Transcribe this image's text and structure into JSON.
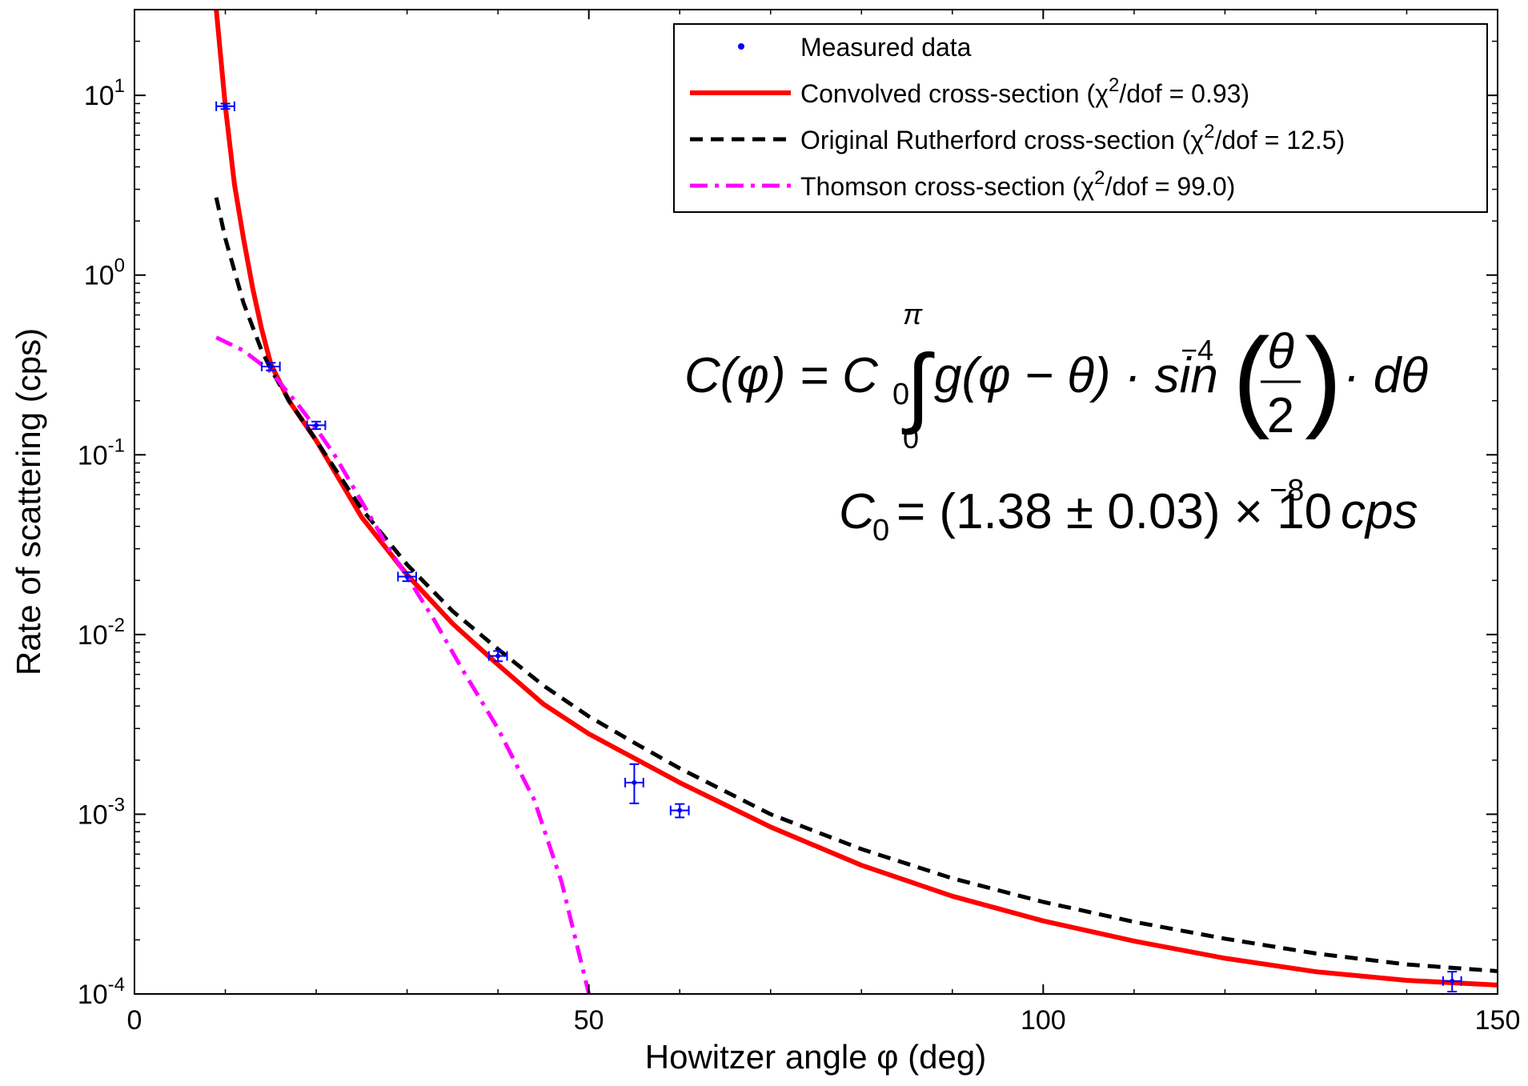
{
  "chart_data": {
    "type": "scatter",
    "title": "",
    "xlabel": "Howitzer angle φ (deg)",
    "ylabel": "Rate of scattering (cps)",
    "xlim": [
      0,
      150
    ],
    "ylim": [
      0.0001,
      30
    ],
    "y_scale": "log",
    "grid": false,
    "legend_position": "top-right",
    "x_ticks": [
      "0",
      "50",
      "100",
      "150"
    ],
    "y_ticks": [
      {
        "base": "10",
        "exp": "1"
      },
      {
        "base": "10",
        "exp": "0"
      },
      {
        "base": "10",
        "exp": "-1"
      },
      {
        "base": "10",
        "exp": "-2"
      },
      {
        "base": "10",
        "exp": "-3"
      },
      {
        "base": "10",
        "exp": "-4"
      }
    ],
    "legend": [
      {
        "prefix": "Measured data",
        "sup": "",
        "suffix": "",
        "color": "#0000ff",
        "style": "point"
      },
      {
        "prefix": "Convolved cross-section (χ",
        "sup": "2",
        "suffix": "/dof = 0.93)",
        "color": "#ff0000",
        "style": "solid"
      },
      {
        "prefix": "Original Rutherford cross-section (χ",
        "sup": "2",
        "suffix": "/dof = 12.5)",
        "color": "#000000",
        "style": "dashed"
      },
      {
        "prefix": "Thomson cross-section (χ",
        "sup": "2",
        "suffix": "/dof = 99.0)",
        "color": "#ff00ff",
        "style": "dashdot"
      }
    ],
    "series": [
      {
        "name": "Measured data",
        "kind": "errorbar",
        "color": "#0000ff",
        "points": [
          {
            "x": 10,
            "y": 8.7,
            "xerr": 1.0,
            "ylo": 8.4,
            "yhi": 9.0
          },
          {
            "x": 15,
            "y": 0.31,
            "xerr": 1.0,
            "ylo": 0.295,
            "yhi": 0.325
          },
          {
            "x": 20,
            "y": 0.146,
            "xerr": 1.0,
            "ylo": 0.139,
            "yhi": 0.153
          },
          {
            "x": 30,
            "y": 0.021,
            "xerr": 1.0,
            "ylo": 0.0198,
            "yhi": 0.0222
          },
          {
            "x": 40,
            "y": 0.0076,
            "xerr": 1.0,
            "ylo": 0.0071,
            "yhi": 0.0081
          },
          {
            "x": 55,
            "y": 0.0015,
            "xerr": 1.0,
            "ylo": 0.00115,
            "yhi": 0.0019
          },
          {
            "x": 60,
            "y": 0.00105,
            "xerr": 1.0,
            "ylo": 0.00096,
            "yhi": 0.00114
          },
          {
            "x": 145,
            "y": 0.000118,
            "xerr": 1.0,
            "ylo": 0.000103,
            "yhi": 0.000133
          }
        ]
      },
      {
        "name": "Convolved cross-section",
        "kind": "line",
        "color": "#ff0000",
        "style": "solid",
        "x": [
          9,
          10,
          11,
          12,
          13,
          14,
          15,
          17,
          20,
          25,
          30,
          35,
          40,
          45,
          50,
          55,
          60,
          70,
          80,
          90,
          100,
          110,
          120,
          130,
          140,
          150
        ],
        "y": [
          30,
          8.7,
          3.2,
          1.6,
          0.85,
          0.5,
          0.32,
          0.2,
          0.12,
          0.045,
          0.0215,
          0.0115,
          0.0068,
          0.0041,
          0.0028,
          0.00205,
          0.0015,
          0.00085,
          0.00052,
          0.00035,
          0.000255,
          0.000197,
          0.000158,
          0.000133,
          0.000119,
          0.000112
        ]
      },
      {
        "name": "Original Rutherford cross-section",
        "kind": "line",
        "color": "#000000",
        "style": "dashed",
        "x": [
          9,
          10,
          12,
          14,
          15,
          17,
          20,
          25,
          30,
          35,
          40,
          45,
          50,
          55,
          60,
          70,
          80,
          90,
          100,
          110,
          120,
          130,
          140,
          150
        ],
        "y": [
          2.7,
          1.6,
          0.7,
          0.38,
          0.3,
          0.2,
          0.12,
          0.05,
          0.0245,
          0.0135,
          0.0083,
          0.0052,
          0.0035,
          0.0025,
          0.0018,
          0.001,
          0.00064,
          0.00044,
          0.000325,
          0.000252,
          0.000203,
          0.000168,
          0.000146,
          0.000134
        ]
      },
      {
        "name": "Thomson cross-section",
        "kind": "line",
        "color": "#ff00ff",
        "style": "dashdot",
        "x": [
          9,
          12,
          15,
          18,
          20,
          22,
          25,
          28,
          30,
          33,
          36,
          40,
          44,
          47,
          50
        ],
        "y": [
          0.45,
          0.38,
          0.29,
          0.19,
          0.14,
          0.1,
          0.055,
          0.03,
          0.021,
          0.012,
          0.0065,
          0.003,
          0.0012,
          0.00042,
          0.0001
        ]
      }
    ],
    "annotations": {
      "formula1": {
        "lhs": "C(φ) = C",
        "lhs_sub": "0",
        "upper": "π",
        "lower": "0",
        "integral": "∫",
        "body1": "g(φ − θ) · sin",
        "body_sup": "−4",
        "num": "θ",
        "den": "2",
        "tail": "· dθ"
      },
      "formula2": {
        "lhs": "C",
        "lhs_sub": "0",
        "rhs": "= (1.38 ± 0.03) × 10",
        "rhs_sup": "−8",
        "unit": "cps"
      }
    }
  }
}
